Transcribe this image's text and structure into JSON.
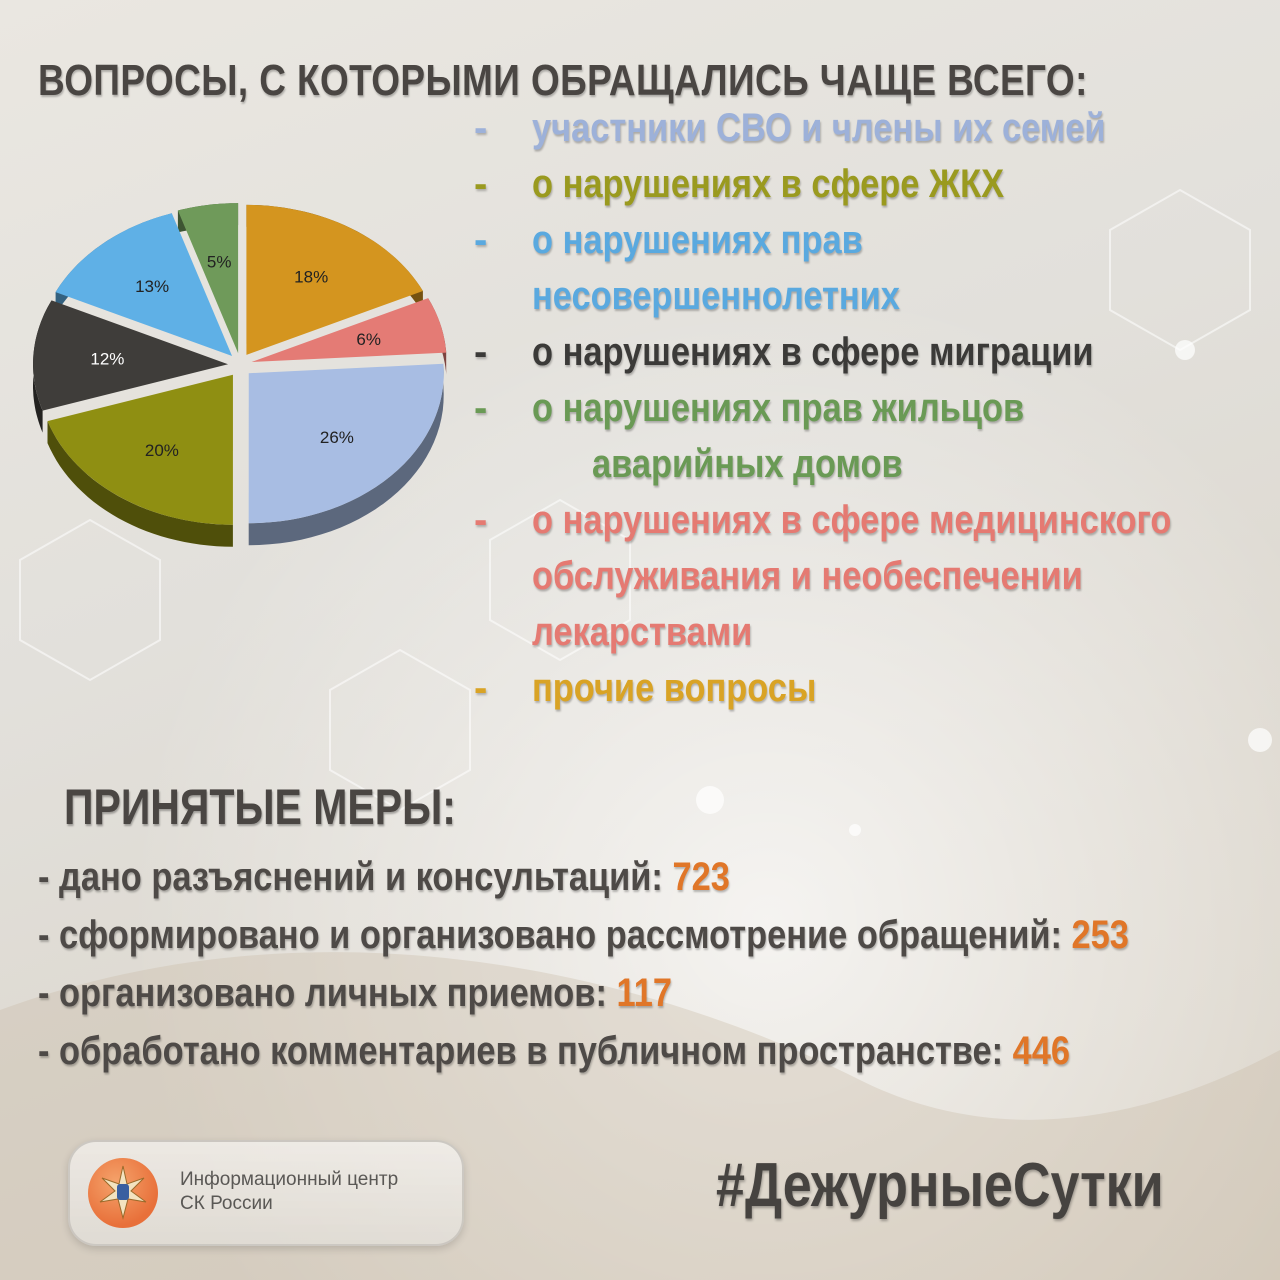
{
  "title": "ВОПРОСЫ, С КОТОРЫМИ ОБРАЩАЛИСЬ ЧАЩЕ ВСЕГО:",
  "legend": [
    {
      "dash": "-",
      "lines": [
        "участники СВО и члены их семей"
      ],
      "color": "#9db1d9"
    },
    {
      "dash": "-",
      "lines": [
        "о нарушениях в сфере ЖКХ"
      ],
      "color": "#9a9a1f"
    },
    {
      "dash": "-",
      "lines": [
        "о нарушениях прав",
        "несовершеннолетних"
      ],
      "color": "#5aa9df"
    },
    {
      "dash": "-",
      "lines": [
        "о нарушениях в сфере миграции"
      ],
      "color": "#3b3a38"
    },
    {
      "dash": "-",
      "lines": [
        "о нарушениях прав жильцов",
        "аварийных домов"
      ],
      "color": "#6a9a55"
    },
    {
      "dash": "-",
      "lines": [
        "о нарушениях в сфере медицинского",
        "обслуживания и необеспечении",
        "лекарствами"
      ],
      "color": "#e57a72"
    },
    {
      "dash": "-",
      "lines": [
        "прочие вопросы"
      ],
      "color": "#d9a325"
    }
  ],
  "chart_data": {
    "type": "pie",
    "slices": [
      {
        "label": "18%",
        "value": 18,
        "color": "#d4951f"
      },
      {
        "label": "6%",
        "value": 6,
        "color": "#e47b75"
      },
      {
        "label": "26%",
        "value": 26,
        "color": "#a8bde3"
      },
      {
        "label": "20%",
        "value": 20,
        "color": "#8f8f12"
      },
      {
        "label": "12%",
        "value": 12,
        "color": "#3f3d3a"
      },
      {
        "label": "13%",
        "value": 13,
        "color": "#5fb0e6"
      },
      {
        "label": "5%",
        "value": 5,
        "color": "#6f9a5a"
      }
    ]
  },
  "measures": {
    "title": "ПРИНЯТЫЕ МЕРЫ:",
    "items": [
      {
        "text": "- дано разъяснений и консультаций: ",
        "value": "723"
      },
      {
        "text": "- сформировано и организовано рассмотрение обращений: ",
        "value": "253"
      },
      {
        "text": "- организовано личных приемов: ",
        "value": "117"
      },
      {
        "text": "-  обработано комментариев в публичном пространстве: ",
        "value": "446"
      }
    ]
  },
  "logo": {
    "line1": "Информационный центр",
    "line2": "СК России"
  },
  "hashtag": "#ДежурныеСутки"
}
